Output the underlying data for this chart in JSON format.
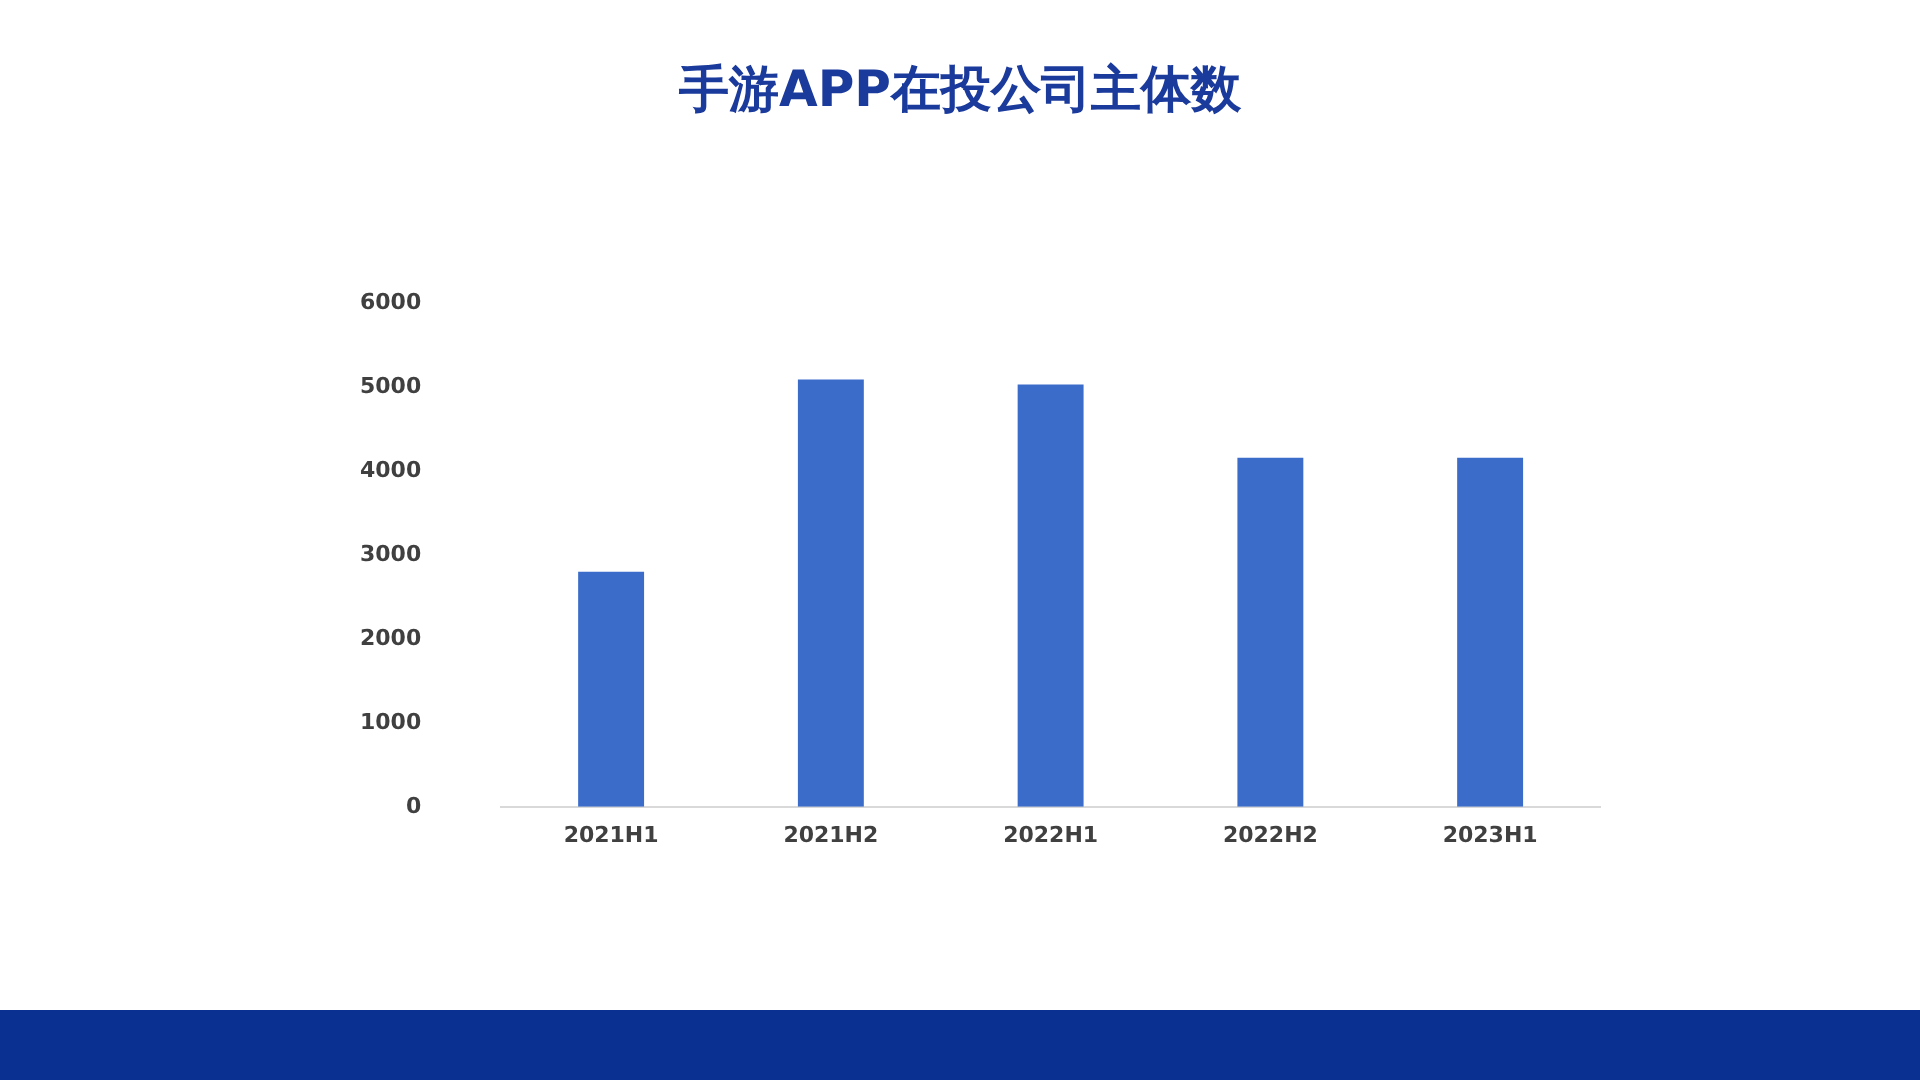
{
  "chart_data": {
    "type": "bar",
    "title": "手游APP在投公司主体数",
    "categories": [
      "2021H1",
      "2021H2",
      "2022H1",
      "2022H2",
      "2023H1"
    ],
    "values": [
      2800,
      5090,
      5030,
      4160,
      4160
    ],
    "color": "#3b6cc9",
    "ylim": [
      0,
      6000
    ],
    "yticks": [
      0,
      1000,
      2000,
      3000,
      4000,
      5000,
      6000
    ],
    "grid": false,
    "legend": false
  }
}
